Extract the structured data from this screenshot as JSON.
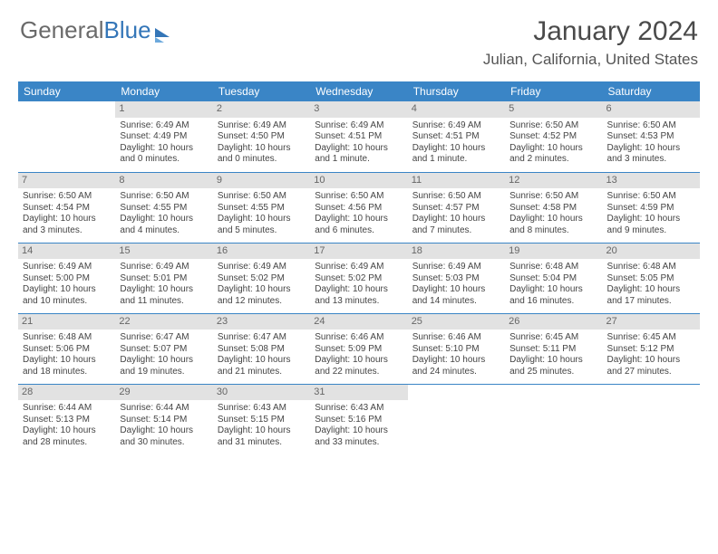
{
  "logo": {
    "part1": "General",
    "part2": "Blue"
  },
  "title": "January 2024",
  "location": "Julian, California, United States",
  "colors": {
    "header_bg": "#3a85c6",
    "header_text": "#ffffff",
    "daynum_bg": "#e2e2e2",
    "row_divider": "#3a85c6",
    "text": "#444444"
  },
  "day_headers": [
    "Sunday",
    "Monday",
    "Tuesday",
    "Wednesday",
    "Thursday",
    "Friday",
    "Saturday"
  ],
  "weeks": [
    [
      {
        "n": "",
        "empty": true
      },
      {
        "n": "1",
        "sr": "Sunrise: 6:49 AM",
        "ss": "Sunset: 4:49 PM",
        "d1": "Daylight: 10 hours",
        "d2": "and 0 minutes."
      },
      {
        "n": "2",
        "sr": "Sunrise: 6:49 AM",
        "ss": "Sunset: 4:50 PM",
        "d1": "Daylight: 10 hours",
        "d2": "and 0 minutes."
      },
      {
        "n": "3",
        "sr": "Sunrise: 6:49 AM",
        "ss": "Sunset: 4:51 PM",
        "d1": "Daylight: 10 hours",
        "d2": "and 1 minute."
      },
      {
        "n": "4",
        "sr": "Sunrise: 6:49 AM",
        "ss": "Sunset: 4:51 PM",
        "d1": "Daylight: 10 hours",
        "d2": "and 1 minute."
      },
      {
        "n": "5",
        "sr": "Sunrise: 6:50 AM",
        "ss": "Sunset: 4:52 PM",
        "d1": "Daylight: 10 hours",
        "d2": "and 2 minutes."
      },
      {
        "n": "6",
        "sr": "Sunrise: 6:50 AM",
        "ss": "Sunset: 4:53 PM",
        "d1": "Daylight: 10 hours",
        "d2": "and 3 minutes."
      }
    ],
    [
      {
        "n": "7",
        "sr": "Sunrise: 6:50 AM",
        "ss": "Sunset: 4:54 PM",
        "d1": "Daylight: 10 hours",
        "d2": "and 3 minutes."
      },
      {
        "n": "8",
        "sr": "Sunrise: 6:50 AM",
        "ss": "Sunset: 4:55 PM",
        "d1": "Daylight: 10 hours",
        "d2": "and 4 minutes."
      },
      {
        "n": "9",
        "sr": "Sunrise: 6:50 AM",
        "ss": "Sunset: 4:55 PM",
        "d1": "Daylight: 10 hours",
        "d2": "and 5 minutes."
      },
      {
        "n": "10",
        "sr": "Sunrise: 6:50 AM",
        "ss": "Sunset: 4:56 PM",
        "d1": "Daylight: 10 hours",
        "d2": "and 6 minutes."
      },
      {
        "n": "11",
        "sr": "Sunrise: 6:50 AM",
        "ss": "Sunset: 4:57 PM",
        "d1": "Daylight: 10 hours",
        "d2": "and 7 minutes."
      },
      {
        "n": "12",
        "sr": "Sunrise: 6:50 AM",
        "ss": "Sunset: 4:58 PM",
        "d1": "Daylight: 10 hours",
        "d2": "and 8 minutes."
      },
      {
        "n": "13",
        "sr": "Sunrise: 6:50 AM",
        "ss": "Sunset: 4:59 PM",
        "d1": "Daylight: 10 hours",
        "d2": "and 9 minutes."
      }
    ],
    [
      {
        "n": "14",
        "sr": "Sunrise: 6:49 AM",
        "ss": "Sunset: 5:00 PM",
        "d1": "Daylight: 10 hours",
        "d2": "and 10 minutes."
      },
      {
        "n": "15",
        "sr": "Sunrise: 6:49 AM",
        "ss": "Sunset: 5:01 PM",
        "d1": "Daylight: 10 hours",
        "d2": "and 11 minutes."
      },
      {
        "n": "16",
        "sr": "Sunrise: 6:49 AM",
        "ss": "Sunset: 5:02 PM",
        "d1": "Daylight: 10 hours",
        "d2": "and 12 minutes."
      },
      {
        "n": "17",
        "sr": "Sunrise: 6:49 AM",
        "ss": "Sunset: 5:02 PM",
        "d1": "Daylight: 10 hours",
        "d2": "and 13 minutes."
      },
      {
        "n": "18",
        "sr": "Sunrise: 6:49 AM",
        "ss": "Sunset: 5:03 PM",
        "d1": "Daylight: 10 hours",
        "d2": "and 14 minutes."
      },
      {
        "n": "19",
        "sr": "Sunrise: 6:48 AM",
        "ss": "Sunset: 5:04 PM",
        "d1": "Daylight: 10 hours",
        "d2": "and 16 minutes."
      },
      {
        "n": "20",
        "sr": "Sunrise: 6:48 AM",
        "ss": "Sunset: 5:05 PM",
        "d1": "Daylight: 10 hours",
        "d2": "and 17 minutes."
      }
    ],
    [
      {
        "n": "21",
        "sr": "Sunrise: 6:48 AM",
        "ss": "Sunset: 5:06 PM",
        "d1": "Daylight: 10 hours",
        "d2": "and 18 minutes."
      },
      {
        "n": "22",
        "sr": "Sunrise: 6:47 AM",
        "ss": "Sunset: 5:07 PM",
        "d1": "Daylight: 10 hours",
        "d2": "and 19 minutes."
      },
      {
        "n": "23",
        "sr": "Sunrise: 6:47 AM",
        "ss": "Sunset: 5:08 PM",
        "d1": "Daylight: 10 hours",
        "d2": "and 21 minutes."
      },
      {
        "n": "24",
        "sr": "Sunrise: 6:46 AM",
        "ss": "Sunset: 5:09 PM",
        "d1": "Daylight: 10 hours",
        "d2": "and 22 minutes."
      },
      {
        "n": "25",
        "sr": "Sunrise: 6:46 AM",
        "ss": "Sunset: 5:10 PM",
        "d1": "Daylight: 10 hours",
        "d2": "and 24 minutes."
      },
      {
        "n": "26",
        "sr": "Sunrise: 6:45 AM",
        "ss": "Sunset: 5:11 PM",
        "d1": "Daylight: 10 hours",
        "d2": "and 25 minutes."
      },
      {
        "n": "27",
        "sr": "Sunrise: 6:45 AM",
        "ss": "Sunset: 5:12 PM",
        "d1": "Daylight: 10 hours",
        "d2": "and 27 minutes."
      }
    ],
    [
      {
        "n": "28",
        "sr": "Sunrise: 6:44 AM",
        "ss": "Sunset: 5:13 PM",
        "d1": "Daylight: 10 hours",
        "d2": "and 28 minutes."
      },
      {
        "n": "29",
        "sr": "Sunrise: 6:44 AM",
        "ss": "Sunset: 5:14 PM",
        "d1": "Daylight: 10 hours",
        "d2": "and 30 minutes."
      },
      {
        "n": "30",
        "sr": "Sunrise: 6:43 AM",
        "ss": "Sunset: 5:15 PM",
        "d1": "Daylight: 10 hours",
        "d2": "and 31 minutes."
      },
      {
        "n": "31",
        "sr": "Sunrise: 6:43 AM",
        "ss": "Sunset: 5:16 PM",
        "d1": "Daylight: 10 hours",
        "d2": "and 33 minutes."
      },
      {
        "n": "",
        "empty": true
      },
      {
        "n": "",
        "empty": true
      },
      {
        "n": "",
        "empty": true
      }
    ]
  ]
}
